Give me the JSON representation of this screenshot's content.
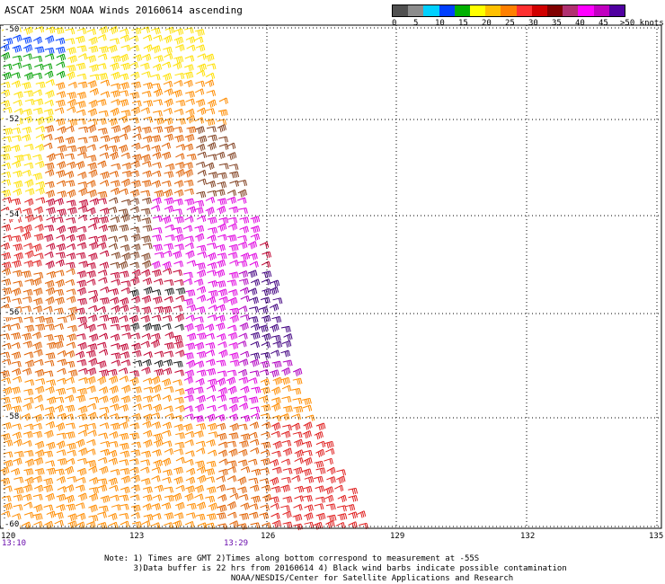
{
  "title": "ASCAT 25KM NOAA Winds 20160614 ascending",
  "legend": {
    "labels": [
      "0",
      "5",
      "10",
      "15",
      "20",
      "25",
      "30",
      "35",
      "40",
      "45",
      ">50 knots"
    ],
    "colors": [
      "#505050",
      "#8c8c8c",
      "#00d0ff",
      "#0040ff",
      "#00b000",
      "#ffff00",
      "#ffc000",
      "#ff8000",
      "#ff3030",
      "#d00000",
      "#800000",
      "#b03070",
      "#ff00ff",
      "#c000c0",
      "#5000a0"
    ]
  },
  "map": {
    "lat_labels": [
      "-50",
      "-52",
      "-54",
      "-56",
      "-58",
      "-60"
    ],
    "lon_labels": [
      "120",
      "123",
      "126",
      "129",
      "132",
      "135"
    ],
    "time_labels": [
      "13:10",
      "13:29"
    ],
    "barb_colors": {
      "yellow": "#ffe000",
      "orange": "#ff8c00",
      "dark_orange": "#e06000",
      "red": "#e02020",
      "crimson": "#c00030",
      "brown": "#804020",
      "black": "#202020",
      "magenta": "#e000e0",
      "purple": "#b000c0",
      "indigo": "#400080",
      "green": "#00a000",
      "blue": "#0040ff"
    }
  },
  "notes": [
    "Note: 1) Times are GMT 2)Times along bottom correspond to measurement at -55S",
    "      3)Data buffer is 22 hrs from 20160614 4) Black wind barbs indicate possible contamination",
    "                          NOAA/NESDIS/Center for Satellite Applications and Research"
  ]
}
